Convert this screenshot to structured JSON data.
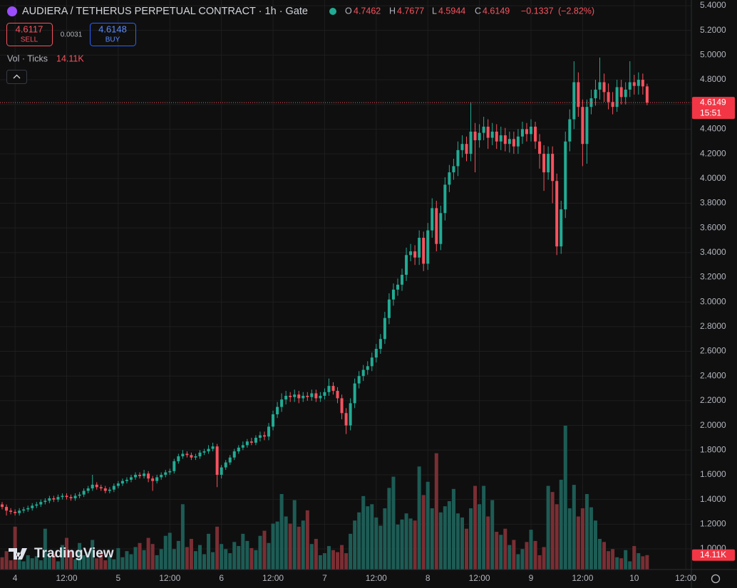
{
  "header": {
    "title": "AUDIERA / TETHERUS PERPETUAL CONTRACT · 1h · Gate",
    "open_label": "O",
    "high_label": "H",
    "low_label": "L",
    "close_label": "C",
    "change": {
      "value": -0.1337,
      "label": "−0.1337"
    },
    "change_percent": {
      "value": -2.82,
      "label": "(−2.82%)"
    },
    "sell": {
      "price": 4.6117,
      "label": "SELL"
    },
    "spread": 0.0031,
    "buy": {
      "price": 4.6148,
      "label": "BUY"
    },
    "countdown": "15:51",
    "watermark": "TradingView"
  },
  "chart_data": {
    "type": "candlestick",
    "up_color": "#22ab94",
    "down_color": "#f7525f",
    "volume_up_color": "#1d5c55",
    "volume_down_color": "#7a2e33",
    "grid": true,
    "ylim": [
      0.833,
      5.446
    ],
    "yticks": [
      {
        "value": 1,
        "label": "1.0000"
      },
      {
        "value": 1.2,
        "label": "1.2000"
      },
      {
        "value": 1.4,
        "label": "1.4000"
      },
      {
        "value": 1.6,
        "label": "1.6000"
      },
      {
        "value": 1.8,
        "label": "1.8000"
      },
      {
        "value": 2,
        "label": "2.0000"
      },
      {
        "value": 2.2,
        "label": "2.2000"
      },
      {
        "value": 2.4,
        "label": "2.4000"
      },
      {
        "value": 2.6,
        "label": "2.6000"
      },
      {
        "value": 2.8,
        "label": "2.8000"
      },
      {
        "value": 3,
        "label": "3.0000"
      },
      {
        "value": 3.2,
        "label": "3.2000"
      },
      {
        "value": 3.4,
        "label": "3.4000"
      },
      {
        "value": 3.6,
        "label": "3.6000"
      },
      {
        "value": 3.8,
        "label": "3.8000"
      },
      {
        "value": 4,
        "label": "4.0000"
      },
      {
        "value": 4.2,
        "label": "4.2000"
      },
      {
        "value": 4.4,
        "label": "4.4000"
      },
      {
        "value": 4.6,
        "label": "4.6000"
      },
      {
        "value": 4.8,
        "label": "4.8000"
      },
      {
        "value": 5,
        "label": "5.0000"
      },
      {
        "value": 5.2,
        "label": "5.2000"
      },
      {
        "value": 5.4,
        "label": "5.4000"
      }
    ],
    "xlim": [
      -0.5,
      160.3
    ],
    "xticks": [
      {
        "value": 3,
        "label": "4"
      },
      {
        "value": 15,
        "label": "12:00"
      },
      {
        "value": 27,
        "label": "5"
      },
      {
        "value": 39,
        "label": "12:00"
      },
      {
        "value": 51,
        "label": "6"
      },
      {
        "value": 63,
        "label": "12:00"
      },
      {
        "value": 75,
        "label": "7"
      },
      {
        "value": 87,
        "label": "12:00"
      },
      {
        "value": 99,
        "label": "8"
      },
      {
        "value": 111,
        "label": "12:00"
      },
      {
        "value": 123,
        "label": "9"
      },
      {
        "value": 135,
        "label": "12:00"
      },
      {
        "value": 147,
        "label": "10"
      },
      {
        "value": 159,
        "label": "12:00"
      }
    ],
    "open": [
      1.36,
      1.34,
      1.31,
      1.3,
      1.29,
      1.31,
      1.32,
      1.33,
      1.35,
      1.36,
      1.38,
      1.39,
      1.41,
      1.4,
      1.42,
      1.43,
      1.42,
      1.41,
      1.43,
      1.44,
      1.47,
      1.49,
      1.52,
      1.5,
      1.49,
      1.47,
      1.48,
      1.51,
      1.53,
      1.55,
      1.56,
      1.58,
      1.6,
      1.59,
      1.61,
      1.57,
      1.55,
      1.58,
      1.6,
      1.62,
      1.63,
      1.71,
      1.75,
      1.77,
      1.76,
      1.74,
      1.75,
      1.78,
      1.79,
      1.81,
      1.83,
      1.6,
      1.66,
      1.7,
      1.74,
      1.79,
      1.82,
      1.84,
      1.87,
      1.86,
      1.9,
      1.92,
      1.91,
      1.99,
      2.09,
      2.15,
      2.21,
      2.24,
      2.23,
      2.25,
      2.22,
      2.24,
      2.23,
      2.26,
      2.22,
      2.24,
      2.27,
      2.32,
      2.28,
      2.22,
      2.1,
      2.0,
      2.18,
      2.34,
      2.4,
      2.45,
      2.48,
      2.55,
      2.62,
      2.7,
      2.87,
      3.02,
      3.1,
      3.14,
      3.22,
      3.38,
      3.41,
      3.36,
      3.52,
      3.31,
      3.58,
      3.76,
      3.47,
      3.72,
      3.95,
      4.05,
      4.1,
      4.23,
      4.28,
      4.2,
      4.38,
      4.31,
      4.37,
      4.42,
      4.33,
      4.38,
      4.3,
      4.35,
      4.28,
      4.32,
      4.26,
      4.34,
      4.4,
      4.36,
      4.42,
      4.3,
      4.2,
      4.05,
      4.2,
      3.98,
      3.45,
      3.75,
      4.3,
      4.48,
      4.78,
      4.58,
      4.28,
      4.58,
      4.65,
      4.72,
      4.78,
      4.7,
      4.62,
      4.58,
      4.74,
      4.66,
      4.72,
      4.78,
      4.75,
      4.8,
      4.7462
    ],
    "high": [
      1.38,
      1.36,
      1.33,
      1.32,
      1.33,
      1.34,
      1.35,
      1.37,
      1.38,
      1.4,
      1.41,
      1.43,
      1.43,
      1.44,
      1.45,
      1.45,
      1.44,
      1.45,
      1.46,
      1.49,
      1.51,
      1.6,
      1.54,
      1.52,
      1.51,
      1.5,
      1.53,
      1.55,
      1.57,
      1.58,
      1.6,
      1.62,
      1.62,
      1.64,
      1.63,
      1.59,
      1.6,
      1.62,
      1.64,
      1.65,
      1.73,
      1.77,
      1.8,
      1.79,
      1.78,
      1.77,
      1.8,
      1.81,
      1.84,
      1.86,
      1.85,
      1.68,
      1.72,
      1.76,
      1.81,
      1.84,
      1.87,
      1.89,
      1.9,
      1.92,
      1.95,
      1.95,
      2.02,
      2.12,
      2.19,
      2.26,
      2.28,
      2.27,
      2.29,
      2.28,
      2.27,
      2.27,
      2.29,
      2.29,
      2.27,
      2.3,
      2.38,
      2.35,
      2.31,
      2.25,
      2.14,
      2.22,
      2.38,
      2.44,
      2.49,
      2.52,
      2.59,
      2.66,
      2.74,
      2.92,
      3.07,
      3.15,
      3.19,
      3.27,
      3.44,
      3.47,
      3.46,
      3.58,
      3.57,
      3.64,
      3.84,
      3.82,
      3.78,
      4.01,
      4.11,
      4.16,
      4.3,
      4.35,
      4.34,
      4.62,
      4.45,
      4.44,
      4.5,
      4.48,
      4.45,
      4.44,
      4.42,
      4.41,
      4.38,
      4.38,
      4.4,
      4.46,
      4.45,
      4.48,
      4.46,
      4.36,
      4.27,
      4.26,
      4.26,
      4.04,
      3.82,
      4.38,
      4.56,
      4.95,
      4.86,
      4.64,
      4.64,
      4.72,
      4.8,
      4.98,
      4.85,
      4.77,
      4.7,
      4.8,
      4.8,
      4.78,
      4.95,
      4.84,
      4.86,
      4.85,
      4.7677
    ],
    "low": [
      1.32,
      1.27,
      1.28,
      1.27,
      1.27,
      1.29,
      1.3,
      1.31,
      1.33,
      1.34,
      1.36,
      1.37,
      1.38,
      1.38,
      1.4,
      1.4,
      1.39,
      1.39,
      1.41,
      1.42,
      1.45,
      1.47,
      1.48,
      1.47,
      1.45,
      1.45,
      1.46,
      1.49,
      1.51,
      1.53,
      1.54,
      1.56,
      1.57,
      1.57,
      1.54,
      1.47,
      1.53,
      1.56,
      1.58,
      1.6,
      1.61,
      1.69,
      1.73,
      1.74,
      1.72,
      1.72,
      1.73,
      1.76,
      1.77,
      1.79,
      1.5,
      1.57,
      1.64,
      1.68,
      1.72,
      1.77,
      1.8,
      1.82,
      1.84,
      1.84,
      1.87,
      1.88,
      1.88,
      1.96,
      2.06,
      2.11,
      2.17,
      2.19,
      2.19,
      2.18,
      2.19,
      2.2,
      2.2,
      2.19,
      2.19,
      2.21,
      2.24,
      2.25,
      2.18,
      2.05,
      1.93,
      1.96,
      2.14,
      2.3,
      2.36,
      2.41,
      2.44,
      2.51,
      2.58,
      2.66,
      2.82,
      2.97,
      3.05,
      3.09,
      3.17,
      3.33,
      3.3,
      3.3,
      3.25,
      3.26,
      3.52,
      3.41,
      3.42,
      3.66,
      3.89,
      3.99,
      4.02,
      4.17,
      4.14,
      4.14,
      4.05,
      4.25,
      4.31,
      4.24,
      4.27,
      4.24,
      4.23,
      4.22,
      4.21,
      4.2,
      4.2,
      4.28,
      4.3,
      4.3,
      4.24,
      4.08,
      3.9,
      3.99,
      3.8,
      3.38,
      3.39,
      3.68,
      4.22,
      4.4,
      4.5,
      4.1,
      4.12,
      4.52,
      4.59,
      4.64,
      4.62,
      4.56,
      4.52,
      4.54,
      4.6,
      4.6,
      4.66,
      4.68,
      4.68,
      4.68,
      4.5944
    ],
    "close": [
      1.34,
      1.31,
      1.3,
      1.29,
      1.31,
      1.32,
      1.33,
      1.35,
      1.36,
      1.38,
      1.39,
      1.41,
      1.4,
      1.42,
      1.43,
      1.42,
      1.41,
      1.43,
      1.44,
      1.47,
      1.49,
      1.52,
      1.5,
      1.49,
      1.47,
      1.48,
      1.51,
      1.53,
      1.55,
      1.56,
      1.58,
      1.6,
      1.59,
      1.61,
      1.57,
      1.55,
      1.58,
      1.6,
      1.62,
      1.63,
      1.71,
      1.75,
      1.77,
      1.76,
      1.74,
      1.75,
      1.78,
      1.79,
      1.81,
      1.83,
      1.6,
      1.66,
      1.7,
      1.74,
      1.79,
      1.82,
      1.84,
      1.87,
      1.86,
      1.9,
      1.92,
      1.91,
      1.99,
      2.09,
      2.15,
      2.21,
      2.24,
      2.23,
      2.25,
      2.22,
      2.24,
      2.23,
      2.26,
      2.22,
      2.24,
      2.27,
      2.32,
      2.28,
      2.22,
      2.1,
      2.0,
      2.18,
      2.34,
      2.4,
      2.45,
      2.48,
      2.55,
      2.62,
      2.7,
      2.87,
      3.02,
      3.1,
      3.14,
      3.22,
      3.38,
      3.41,
      3.36,
      3.52,
      3.31,
      3.58,
      3.76,
      3.47,
      3.72,
      3.95,
      4.05,
      4.1,
      4.23,
      4.28,
      4.2,
      4.38,
      4.31,
      4.37,
      4.42,
      4.33,
      4.38,
      4.3,
      4.35,
      4.28,
      4.32,
      4.26,
      4.34,
      4.4,
      4.36,
      4.42,
      4.3,
      4.2,
      4.05,
      4.2,
      3.98,
      3.45,
      3.75,
      4.3,
      4.48,
      4.78,
      4.58,
      4.28,
      4.58,
      4.65,
      4.72,
      4.78,
      4.7,
      4.62,
      4.58,
      4.74,
      4.66,
      4.72,
      4.78,
      4.75,
      4.8,
      4.7462,
      4.6149
    ],
    "volume": {
      "name": "Vol · Ticks",
      "last_value_label": "14.11K",
      "values": [
        12000,
        18000,
        9000,
        42000,
        10000,
        8000,
        14000,
        11000,
        13000,
        9000,
        40000,
        12000,
        15000,
        8000,
        24000,
        31000,
        19000,
        10000,
        26000,
        14000,
        17000,
        29000,
        11000,
        16000,
        9000,
        13000,
        10000,
        21000,
        12000,
        18000,
        15000,
        22000,
        26000,
        19000,
        31000,
        25000,
        14000,
        20000,
        33000,
        36000,
        20000,
        28000,
        64000,
        22000,
        30000,
        18000,
        24000,
        15000,
        35000,
        17000,
        42000,
        25000,
        20000,
        16000,
        27000,
        23000,
        35000,
        28000,
        21000,
        19000,
        33000,
        38000,
        26000,
        45000,
        47000,
        74000,
        52000,
        45000,
        68000,
        42000,
        48000,
        58000,
        25000,
        30000,
        14000,
        16000,
        23000,
        19000,
        17000,
        24000,
        16000,
        35000,
        48000,
        56000,
        72000,
        62000,
        64000,
        51000,
        43000,
        60000,
        80000,
        91000,
        44000,
        49000,
        55000,
        50000,
        48000,
        101000,
        73000,
        86000,
        60000,
        114000,
        56000,
        62000,
        67000,
        79000,
        55000,
        51000,
        40000,
        60000,
        82000,
        64000,
        82000,
        52000,
        68000,
        37000,
        34000,
        40000,
        24000,
        29000,
        15000,
        20000,
        27000,
        39000,
        28000,
        14000,
        22000,
        82000,
        76000,
        64000,
        88000,
        141000,
        60000,
        83000,
        52000,
        60000,
        74000,
        61000,
        48000,
        30000,
        27000,
        18000,
        20000,
        12000,
        11000,
        19000,
        8000,
        23000,
        16000,
        13000,
        14110
      ]
    }
  }
}
